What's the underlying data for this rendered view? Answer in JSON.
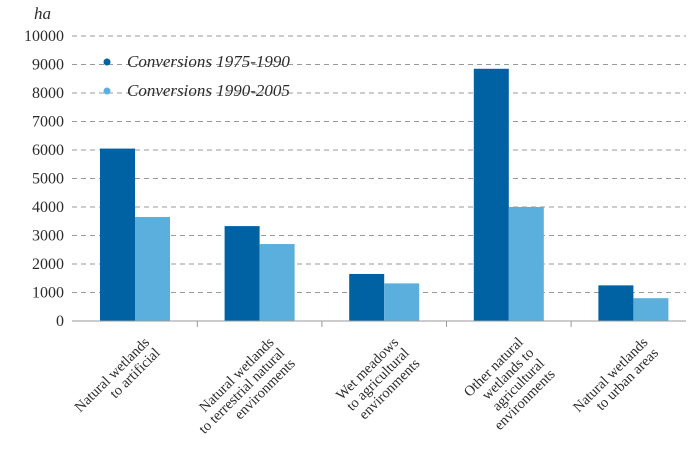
{
  "chart_data": {
    "type": "bar",
    "unit_label": "ha",
    "categories": [
      [
        "Natural wetlands",
        "to artificial"
      ],
      [
        "Natural wetlands",
        "to terrestrial natural",
        "environments"
      ],
      [
        "Wet meadows",
        "to agricultural",
        "environments"
      ],
      [
        "Other natural",
        "wetlands to",
        "agricultural",
        "environments"
      ],
      [
        "Natural wetlands",
        "to urban areas"
      ]
    ],
    "series": [
      {
        "name": "Conversions 1975-1990",
        "color": "#0062a3",
        "values": [
          6050,
          3330,
          1650,
          8850,
          1250
        ]
      },
      {
        "name": "Conversions 1990-2005",
        "color": "#5aafdc",
        "values": [
          3650,
          2700,
          1320,
          4000,
          800
        ]
      }
    ],
    "yticks": [
      0,
      1000,
      2000,
      3000,
      4000,
      5000,
      6000,
      7000,
      8000,
      9000,
      10000
    ],
    "ylim": [
      0,
      10000
    ],
    "grid": "dashed-horizontal",
    "legend_position": "top-left"
  }
}
